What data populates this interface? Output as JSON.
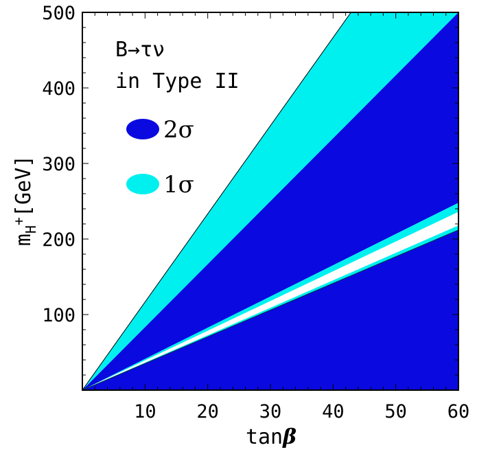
{
  "chart_data": {
    "type": "area",
    "title": "",
    "xlabel": "tan",
    "xlabel_symbol": "β",
    "ylabel_main": "m",
    "ylabel_sub": "H",
    "ylabel_sup": "+",
    "ylabel_unit": "[GeV]",
    "xlim": [
      0,
      60
    ],
    "ylim": [
      0,
      500
    ],
    "xticks": [
      10,
      20,
      30,
      40,
      50,
      60
    ],
    "yticks": [
      100,
      200,
      300,
      400,
      500
    ],
    "grid": false,
    "annotation": [
      "B→τν",
      "in Type II"
    ],
    "legend": [
      {
        "label": "2σ",
        "color": "#0a0ae0"
      },
      {
        "label": "1σ",
        "color": "#00f0f0"
      }
    ],
    "colors": {
      "sigma2": "#0a0ae0",
      "sigma1": "#00f0f0",
      "excluded": "#ffffff",
      "frame": "#000000"
    },
    "regions": [
      {
        "name": "1σ",
        "level": "sigma1",
        "boundary_y_at_tanb60": [
          500,
          700
        ]
      },
      {
        "name": "2σ",
        "level": "sigma2",
        "boundary_y_at_tanb60": [
          248,
          500
        ]
      },
      {
        "name": "1σ",
        "level": "sigma1",
        "boundary_y_at_tanb60": [
          236,
          248
        ]
      },
      {
        "name": "1σ",
        "level": "sigma1",
        "boundary_y_at_tanb60": [
          212,
          218
        ]
      },
      {
        "name": "2σ",
        "level": "sigma2",
        "boundary_y_at_tanb60": [
          0,
          212
        ]
      }
    ]
  }
}
